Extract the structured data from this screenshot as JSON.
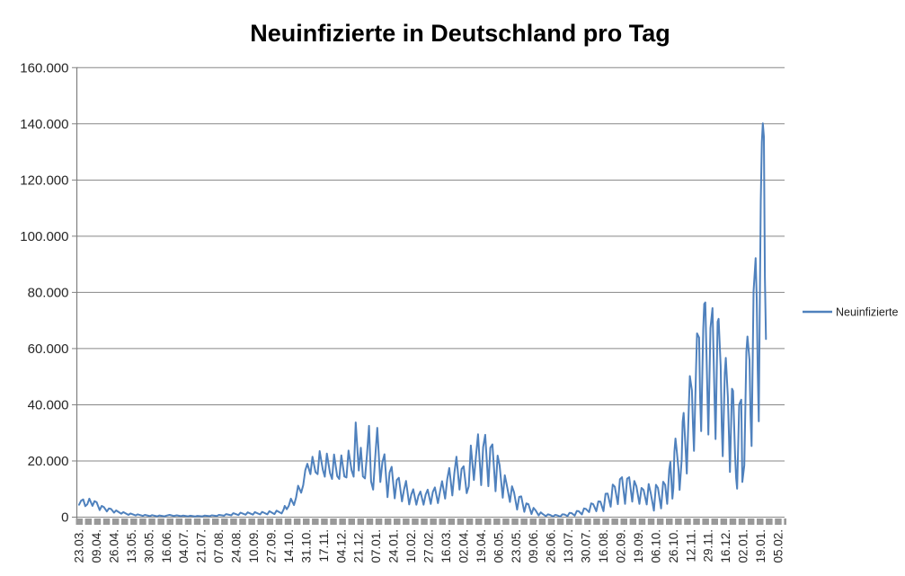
{
  "chart": {
    "title": "Neuinfizierte in Deutschland pro Tag",
    "legend": {
      "position": "right",
      "entry_label": "Neuinfizierte"
    }
  },
  "colors": {
    "series_line": "#4F81BD",
    "gridline": "#878787",
    "axis_line": "#808080",
    "tick_strip": "#999999",
    "label_text": "#262626",
    "title_text": "#000000",
    "background": "#ffffff"
  },
  "chart_data": {
    "type": "line",
    "title": "Neuinfizierte in Deutschland pro Tag",
    "xlabel": "",
    "ylabel": "",
    "ylim": [
      0,
      160000
    ],
    "y_ticks": [
      0,
      20000,
      40000,
      60000,
      80000,
      100000,
      120000,
      140000,
      160000
    ],
    "y_tick_labels": [
      "0",
      "20.000",
      "40.000",
      "60.000",
      "80.000",
      "100.000",
      "120.000",
      "140.000",
      "160.000"
    ],
    "x_tick_labels": [
      "23.03.",
      "09.04.",
      "26.04.",
      "13.05.",
      "30.05.",
      "16.06.",
      "04.07.",
      "21.07.",
      "07.08.",
      "24.08.",
      "10.09.",
      "27.09.",
      "14.10.",
      "31.10.",
      "17.11.",
      "04.12.",
      "21.12.",
      "07.01.",
      "24.01.",
      "10.02.",
      "27.02.",
      "16.03.",
      "02.04.",
      "19.04.",
      "06.05.",
      "23.05.",
      "09.06.",
      "26.06.",
      "13.07.",
      "30.07.",
      "16.08.",
      "02.09.",
      "19.09.",
      "06.10.",
      "26.10.",
      "12.11.",
      "29.11.",
      "16.12.",
      "02.01.",
      "19.01.",
      "05.02."
    ],
    "x_tick_interval_categories": 17,
    "x_category_count": 681,
    "grid": "horizontal",
    "legend_position": "right",
    "series": [
      {
        "name": "Neuinfizierte",
        "color": "#4F81BD",
        "points": [
          [
            0,
            4400
          ],
          [
            2,
            5900
          ],
          [
            4,
            6300
          ],
          [
            6,
            3900
          ],
          [
            8,
            4600
          ],
          [
            10,
            6600
          ],
          [
            13,
            4000
          ],
          [
            15,
            5700
          ],
          [
            17,
            5300
          ],
          [
            20,
            2500
          ],
          [
            22,
            4000
          ],
          [
            24,
            3600
          ],
          [
            27,
            2000
          ],
          [
            29,
            3100
          ],
          [
            31,
            2900
          ],
          [
            34,
            1600
          ],
          [
            36,
            2400
          ],
          [
            41,
            1200
          ],
          [
            43,
            1800
          ],
          [
            48,
            800
          ],
          [
            50,
            1300
          ],
          [
            55,
            600
          ],
          [
            57,
            1000
          ],
          [
            62,
            450
          ],
          [
            64,
            800
          ],
          [
            69,
            350
          ],
          [
            71,
            700
          ],
          [
            76,
            300
          ],
          [
            78,
            600
          ],
          [
            83,
            300
          ],
          [
            85,
            550
          ],
          [
            88,
            800
          ],
          [
            90,
            600
          ],
          [
            92,
            400
          ],
          [
            95,
            650
          ],
          [
            99,
            350
          ],
          [
            101,
            550
          ],
          [
            106,
            300
          ],
          [
            108,
            500
          ],
          [
            113,
            250
          ],
          [
            115,
            450
          ],
          [
            120,
            300
          ],
          [
            122,
            550
          ],
          [
            127,
            350
          ],
          [
            129,
            650
          ],
          [
            134,
            400
          ],
          [
            136,
            800
          ],
          [
            141,
            500
          ],
          [
            143,
            1100
          ],
          [
            148,
            650
          ],
          [
            150,
            1400
          ],
          [
            155,
            750
          ],
          [
            157,
            1600
          ],
          [
            162,
            850
          ],
          [
            164,
            1700
          ],
          [
            169,
            900
          ],
          [
            171,
            1800
          ],
          [
            176,
            950
          ],
          [
            178,
            1900
          ],
          [
            183,
            1000
          ],
          [
            185,
            2100
          ],
          [
            190,
            1100
          ],
          [
            192,
            2300
          ],
          [
            197,
            1300
          ],
          [
            199,
            2800
          ],
          [
            200,
            4000
          ],
          [
            202,
            2800
          ],
          [
            204,
            4100
          ],
          [
            206,
            6600
          ],
          [
            209,
            4300
          ],
          [
            211,
            6900
          ],
          [
            213,
            11200
          ],
          [
            216,
            8700
          ],
          [
            218,
            11400
          ],
          [
            220,
            16700
          ],
          [
            222,
            19000
          ],
          [
            225,
            15300
          ],
          [
            227,
            21500
          ],
          [
            230,
            16000
          ],
          [
            232,
            15300
          ],
          [
            234,
            23500
          ],
          [
            237,
            16900
          ],
          [
            239,
            14400
          ],
          [
            241,
            22600
          ],
          [
            244,
            15700
          ],
          [
            246,
            13600
          ],
          [
            248,
            22300
          ],
          [
            251,
            14600
          ],
          [
            253,
            13600
          ],
          [
            255,
            22000
          ],
          [
            258,
            14500
          ],
          [
            260,
            14100
          ],
          [
            262,
            23700
          ],
          [
            265,
            16700
          ],
          [
            267,
            14400
          ],
          [
            269,
            33700
          ],
          [
            272,
            16600
          ],
          [
            274,
            24700
          ],
          [
            276,
            14500
          ],
          [
            278,
            13800
          ],
          [
            280,
            22500
          ],
          [
            282,
            32500
          ],
          [
            284,
            12700
          ],
          [
            286,
            9800
          ],
          [
            288,
            21200
          ],
          [
            290,
            31800
          ],
          [
            293,
            12500
          ],
          [
            295,
            19600
          ],
          [
            297,
            22400
          ],
          [
            300,
            7100
          ],
          [
            302,
            15900
          ],
          [
            304,
            17900
          ],
          [
            307,
            6700
          ],
          [
            309,
            13200
          ],
          [
            311,
            14000
          ],
          [
            314,
            5600
          ],
          [
            316,
            9700
          ],
          [
            318,
            12900
          ],
          [
            321,
            4500
          ],
          [
            323,
            8000
          ],
          [
            325,
            9900
          ],
          [
            328,
            4400
          ],
          [
            330,
            7600
          ],
          [
            332,
            9100
          ],
          [
            335,
            4400
          ],
          [
            337,
            8000
          ],
          [
            339,
            9800
          ],
          [
            342,
            4700
          ],
          [
            344,
            9000
          ],
          [
            346,
            10600
          ],
          [
            349,
            5000
          ],
          [
            351,
            9100
          ],
          [
            353,
            12800
          ],
          [
            356,
            6600
          ],
          [
            358,
            13400
          ],
          [
            360,
            17500
          ],
          [
            363,
            7700
          ],
          [
            365,
            15800
          ],
          [
            367,
            21500
          ],
          [
            370,
            9800
          ],
          [
            372,
            17100
          ],
          [
            374,
            18100
          ],
          [
            377,
            8500
          ],
          [
            379,
            11000
          ],
          [
            381,
            25500
          ],
          [
            384,
            13200
          ],
          [
            386,
            21700
          ],
          [
            388,
            29500
          ],
          [
            391,
            11400
          ],
          [
            393,
            24900
          ],
          [
            395,
            29300
          ],
          [
            398,
            11000
          ],
          [
            400,
            24700
          ],
          [
            402,
            25900
          ],
          [
            405,
            9200
          ],
          [
            407,
            21900
          ],
          [
            409,
            18500
          ],
          [
            412,
            6900
          ],
          [
            414,
            14900
          ],
          [
            416,
            11300
          ],
          [
            419,
            5400
          ],
          [
            421,
            11000
          ],
          [
            423,
            8800
          ],
          [
            426,
            2700
          ],
          [
            428,
            7200
          ],
          [
            430,
            7400
          ],
          [
            433,
            1900
          ],
          [
            435,
            4900
          ],
          [
            437,
            4600
          ],
          [
            440,
            1100
          ],
          [
            442,
            3300
          ],
          [
            444,
            2400
          ],
          [
            447,
            600
          ],
          [
            449,
            1700
          ],
          [
            451,
            1100
          ],
          [
            454,
            350
          ],
          [
            456,
            1000
          ],
          [
            458,
            800
          ],
          [
            461,
            220
          ],
          [
            463,
            800
          ],
          [
            465,
            650
          ],
          [
            468,
            200
          ],
          [
            470,
            1000
          ],
          [
            472,
            950
          ],
          [
            475,
            350
          ],
          [
            477,
            1550
          ],
          [
            479,
            1450
          ],
          [
            482,
            550
          ],
          [
            484,
            2200
          ],
          [
            486,
            2100
          ],
          [
            489,
            950
          ],
          [
            491,
            3100
          ],
          [
            493,
            2900
          ],
          [
            496,
            1800
          ],
          [
            498,
            4900
          ],
          [
            500,
            4600
          ],
          [
            503,
            2100
          ],
          [
            505,
            5600
          ],
          [
            507,
            5500
          ],
          [
            510,
            2100
          ],
          [
            512,
            8300
          ],
          [
            514,
            8400
          ],
          [
            517,
            3700
          ],
          [
            519,
            11600
          ],
          [
            521,
            10800
          ],
          [
            524,
            4600
          ],
          [
            526,
            13500
          ],
          [
            528,
            14200
          ],
          [
            531,
            4700
          ],
          [
            533,
            13700
          ],
          [
            535,
            14200
          ],
          [
            538,
            5500
          ],
          [
            540,
            12900
          ],
          [
            542,
            11000
          ],
          [
            545,
            4700
          ],
          [
            547,
            10400
          ],
          [
            549,
            9700
          ],
          [
            552,
            4500
          ],
          [
            554,
            11800
          ],
          [
            556,
            8500
          ],
          [
            559,
            2300
          ],
          [
            561,
            11500
          ],
          [
            563,
            10400
          ],
          [
            566,
            3100
          ],
          [
            568,
            12600
          ],
          [
            570,
            11500
          ],
          [
            572,
            4700
          ],
          [
            574,
            17000
          ],
          [
            575,
            19600
          ],
          [
            577,
            6600
          ],
          [
            578,
            10500
          ],
          [
            579,
            23200
          ],
          [
            580,
            28000
          ],
          [
            581,
            24700
          ],
          [
            583,
            16900
          ],
          [
            584,
            9700
          ],
          [
            586,
            20400
          ],
          [
            587,
            34000
          ],
          [
            588,
            37100
          ],
          [
            590,
            23500
          ],
          [
            591,
            15500
          ],
          [
            593,
            39700
          ],
          [
            594,
            50200
          ],
          [
            596,
            45100
          ],
          [
            597,
            33500
          ],
          [
            598,
            23600
          ],
          [
            600,
            52800
          ],
          [
            601,
            65400
          ],
          [
            603,
            63900
          ],
          [
            604,
            42700
          ],
          [
            605,
            30600
          ],
          [
            607,
            66900
          ],
          [
            608,
            75900
          ],
          [
            609,
            76400
          ],
          [
            611,
            44400
          ],
          [
            612,
            29400
          ],
          [
            614,
            67200
          ],
          [
            616,
            74400
          ],
          [
            618,
            42100
          ],
          [
            619,
            27800
          ],
          [
            621,
            69600
          ],
          [
            622,
            70600
          ],
          [
            624,
            53700
          ],
          [
            625,
            32600
          ],
          [
            626,
            21700
          ],
          [
            628,
            51300
          ],
          [
            629,
            56700
          ],
          [
            631,
            42800
          ],
          [
            632,
            29300
          ],
          [
            633,
            16100
          ],
          [
            635,
            45700
          ],
          [
            636,
            44900
          ],
          [
            638,
            22200
          ],
          [
            639,
            13900
          ],
          [
            640,
            10100
          ],
          [
            642,
            40000
          ],
          [
            644,
            41800
          ],
          [
            645,
            12500
          ],
          [
            647,
            18500
          ],
          [
            649,
            58900
          ],
          [
            650,
            64300
          ],
          [
            652,
            55900
          ],
          [
            653,
            36600
          ],
          [
            654,
            25300
          ],
          [
            656,
            80400
          ],
          [
            658,
            92200
          ],
          [
            659,
            78000
          ],
          [
            660,
            52500
          ],
          [
            661,
            34100
          ],
          [
            662,
            74400
          ],
          [
            663,
            112300
          ],
          [
            664,
            133500
          ],
          [
            665,
            140200
          ],
          [
            666,
            135500
          ],
          [
            667,
            85400
          ],
          [
            668,
            63400
          ]
        ]
      }
    ]
  }
}
